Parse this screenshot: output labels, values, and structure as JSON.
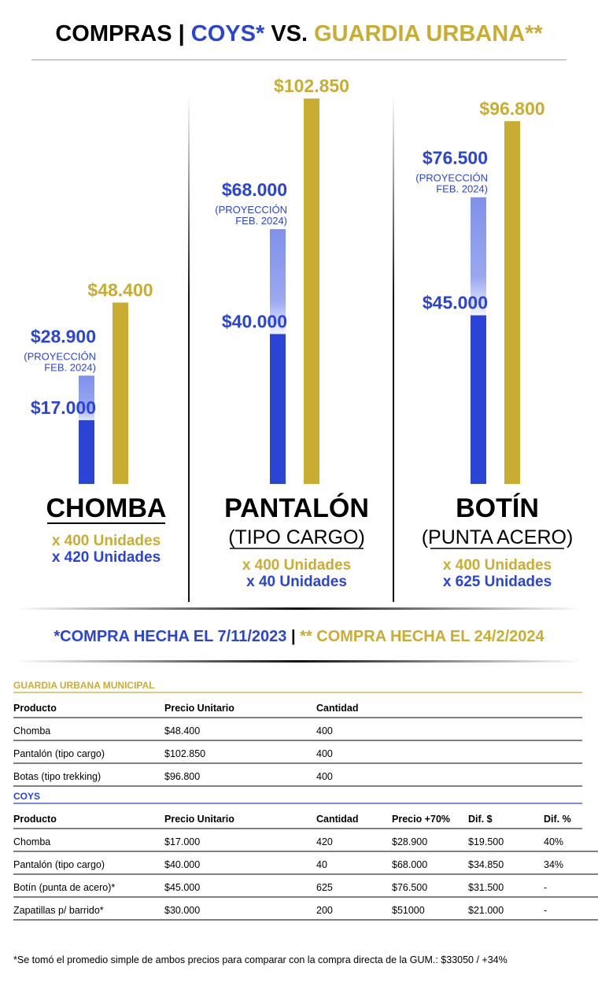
{
  "title": [
    "COMPRAS | ",
    "COYS*",
    " VS. ",
    "GUARDIA URBANA**"
  ],
  "panels": [
    {
      "name": "CHOMBA",
      "gold": {
        "value": 48400,
        "label": "$48.400"
      },
      "blue": {
        "value": 17000,
        "label": "$17.000"
      },
      "projection": {
        "value": 28900,
        "label": "$28.900"
      },
      "projection_note": [
        "(PROYECCIÓN",
        "FEB. 2024)"
      ],
      "units": [
        "x 400 Unidades",
        "x 420 Unidades"
      ]
    },
    {
      "name": "PANTALÓN",
      "subtitle": "(TIPO CARGO)",
      "gold": {
        "value": 102850,
        "label": "$102.850"
      },
      "blue": {
        "value": 40000,
        "label": "$40.000"
      },
      "projection": {
        "value": 68000,
        "label": "$68.000"
      },
      "projection_note": [
        "(PROYECCIÓN",
        "FEB. 2024)"
      ],
      "units": [
        "x 400 Unidades",
        "x 40 Unidades"
      ]
    },
    {
      "name": "BOTÍN",
      "subtitle": "(PUNTA ACERO)",
      "gold": {
        "value": 96800,
        "label": "$96.800"
      },
      "blue": {
        "value": 45000,
        "label": "$45.000"
      },
      "projection": {
        "value": 76500,
        "label": "$76.500"
      },
      "projection_note": [
        "(PROYECCIÓN",
        "FEB. 2024)"
      ],
      "units": [
        "x 400 Unidades",
        "x 625 Unidades"
      ]
    }
  ],
  "purchase_dates": [
    "*COMPRA HECHA EL 7/11/2023",
    " | ",
    "** COMPRA HECHA EL 24/2/2024"
  ],
  "tables": [
    {
      "title": "GUARDIA URBANA MUNICIPAL",
      "header": [
        "Producto",
        "Precio Unitario",
        "Cantidad"
      ],
      "rows": [
        [
          "Chomba",
          "$48.400",
          "400"
        ],
        [
          "Pantalón (tipo cargo)",
          "$102.850",
          "400"
        ],
        [
          "Botas (tipo trekking)",
          "$96.800",
          "400"
        ]
      ]
    },
    {
      "title": "COYS",
      "header": [
        "Producto",
        "Precio Unitario",
        "Cantidad",
        "Precio +70%",
        "Dif. $",
        "Dif. %"
      ],
      "rows": [
        [
          "Chomba",
          "$17.000",
          "420",
          "$28.900",
          "$19.500",
          "40%"
        ],
        [
          "Pantalón (tipo cargo)",
          "$40.000",
          "40",
          "$68.000",
          "$34.850",
          "34%"
        ],
        [
          "Botín (punta de acero)*",
          "$45.000",
          "625",
          "$76.500",
          "$31.500",
          "-"
        ],
        [
          "Zapatillas p/ barrido*",
          "$30.000",
          "200",
          "$51000",
          "$21.000",
          "-"
        ]
      ]
    }
  ],
  "footnote": "*Se tomó el promedio simple de ambos precios para comparar con la compra directa de la GUM.: $33050 / +34%"
}
